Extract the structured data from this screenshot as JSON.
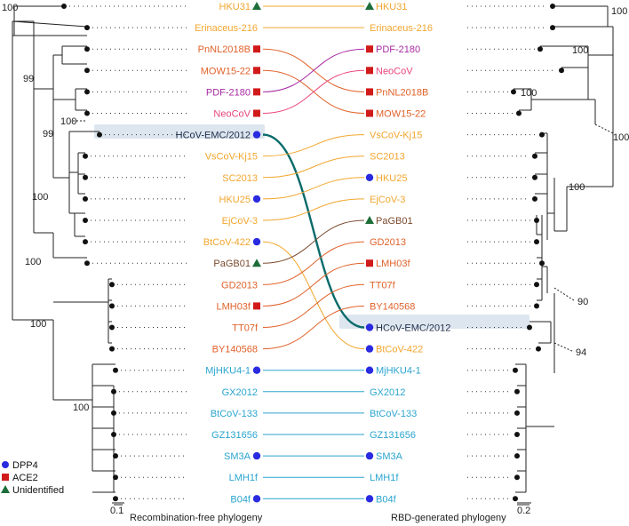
{
  "colors": {
    "brown": "#7a4a2e",
    "orange": "#f2a62e",
    "red": "#e0622a",
    "magenta": "#a82aa3",
    "pink": "#e8467a",
    "dark": "#1f2f4a",
    "teal": "#0a6b6b",
    "cyan": "#2aa5cf",
    "blue_marker": "#2a2ae0",
    "red_marker": "#d11a1a",
    "green_marker": "#1e6e3a",
    "highlight": "#dde6ef"
  },
  "legend": [
    {
      "shape": "circle",
      "label": "DPP4"
    },
    {
      "shape": "square",
      "label": "ACE2"
    },
    {
      "shape": "triangle",
      "label": "Unidentified"
    }
  ],
  "left_panel": {
    "caption": "Recombination-free phylogeny",
    "scale": "0.1",
    "taxa": [
      {
        "label": "HKU31",
        "color": "orange",
        "marker": "triangle"
      },
      {
        "label": "Erinaceus-216",
        "color": "orange",
        "marker": ""
      },
      {
        "label": "PnNL2018B",
        "color": "red",
        "marker": "square"
      },
      {
        "label": "MOW15-22",
        "color": "red",
        "marker": "square"
      },
      {
        "label": "PDF-2180",
        "color": "magenta",
        "marker": "square"
      },
      {
        "label": "NeoCoV",
        "color": "pink",
        "marker": "square"
      },
      {
        "label": "HCoV-EMC/2012",
        "color": "dark",
        "marker": "circle"
      },
      {
        "label": "VsCoV-Kj15",
        "color": "orange",
        "marker": ""
      },
      {
        "label": "SC2013",
        "color": "orange",
        "marker": ""
      },
      {
        "label": "HKU25",
        "color": "orange",
        "marker": "circle"
      },
      {
        "label": "EjCoV-3",
        "color": "orange",
        "marker": ""
      },
      {
        "label": "BtCoV-422",
        "color": "orange",
        "marker": "circle"
      },
      {
        "label": "PaGB01",
        "color": "brown",
        "marker": "triangle"
      },
      {
        "label": "GD2013",
        "color": "red",
        "marker": ""
      },
      {
        "label": "LMH03f",
        "color": "red",
        "marker": "square"
      },
      {
        "label": "TT07f",
        "color": "red",
        "marker": ""
      },
      {
        "label": "BY140568",
        "color": "red",
        "marker": ""
      },
      {
        "label": "MjHKU4-1",
        "color": "cyan",
        "marker": "circle"
      },
      {
        "label": "GX2012",
        "color": "cyan",
        "marker": ""
      },
      {
        "label": "BtCoV-133",
        "color": "cyan",
        "marker": ""
      },
      {
        "label": "GZ131656",
        "color": "cyan",
        "marker": ""
      },
      {
        "label": "SM3A",
        "color": "cyan",
        "marker": "circle"
      },
      {
        "label": "LMH1f",
        "color": "cyan",
        "marker": ""
      },
      {
        "label": "B04f",
        "color": "cyan",
        "marker": "circle"
      }
    ],
    "bootstrap": [
      "100",
      "99",
      "100",
      "99",
      "100",
      "100",
      "100",
      "100"
    ]
  },
  "right_panel": {
    "caption": "RBD-generated phylogeny",
    "scale": "0.2",
    "taxa": [
      {
        "label": "HKU31",
        "color": "orange",
        "marker": "triangle"
      },
      {
        "label": "Erinaceus-216",
        "color": "orange",
        "marker": ""
      },
      {
        "label": "PDF-2180",
        "color": "magenta",
        "marker": "square"
      },
      {
        "label": "NeoCoV",
        "color": "pink",
        "marker": "square"
      },
      {
        "label": "PnNL2018B",
        "color": "red",
        "marker": "square"
      },
      {
        "label": "MOW15-22",
        "color": "red",
        "marker": "square"
      },
      {
        "label": "VsCoV-Kj15",
        "color": "orange",
        "marker": ""
      },
      {
        "label": "SC2013",
        "color": "orange",
        "marker": ""
      },
      {
        "label": "HKU25",
        "color": "orange",
        "marker": "circle"
      },
      {
        "label": "EjCoV-3",
        "color": "orange",
        "marker": ""
      },
      {
        "label": "PaGB01",
        "color": "brown",
        "marker": "triangle"
      },
      {
        "label": "GD2013",
        "color": "red",
        "marker": ""
      },
      {
        "label": "LMH03f",
        "color": "red",
        "marker": "square"
      },
      {
        "label": "TT07f",
        "color": "red",
        "marker": ""
      },
      {
        "label": "BY140568",
        "color": "red",
        "marker": ""
      },
      {
        "label": "HCoV-EMC/2012",
        "color": "dark",
        "marker": "circle"
      },
      {
        "label": "BtCoV-422",
        "color": "orange",
        "marker": "circle"
      },
      {
        "label": "MjHKU4-1",
        "color": "cyan",
        "marker": "circle"
      },
      {
        "label": "GX2012",
        "color": "cyan",
        "marker": ""
      },
      {
        "label": "BtCoV-133",
        "color": "cyan",
        "marker": ""
      },
      {
        "label": "GZ131656",
        "color": "cyan",
        "marker": ""
      },
      {
        "label": "SM3A",
        "color": "cyan",
        "marker": "circle"
      },
      {
        "label": "LMH1f",
        "color": "cyan",
        "marker": ""
      },
      {
        "label": "B04f",
        "color": "cyan",
        "marker": "circle"
      }
    ],
    "bootstrap": [
      "100",
      "100",
      "100",
      "100",
      "100",
      "90",
      "94"
    ]
  },
  "links": [
    {
      "from": 0,
      "to": 0,
      "color": "orange"
    },
    {
      "from": 1,
      "to": 1,
      "color": "orange"
    },
    {
      "from": 2,
      "to": 4,
      "color": "red"
    },
    {
      "from": 3,
      "to": 5,
      "color": "red"
    },
    {
      "from": 4,
      "to": 2,
      "color": "magenta"
    },
    {
      "from": 5,
      "to": 3,
      "color": "pink"
    },
    {
      "from": 6,
      "to": 15,
      "color": "teal",
      "bold": true
    },
    {
      "from": 7,
      "to": 6,
      "color": "orange"
    },
    {
      "from": 8,
      "to": 7,
      "color": "orange"
    },
    {
      "from": 9,
      "to": 8,
      "color": "orange"
    },
    {
      "from": 10,
      "to": 9,
      "color": "orange"
    },
    {
      "from": 11,
      "to": 16,
      "color": "orange"
    },
    {
      "from": 12,
      "to": 10,
      "color": "brown"
    },
    {
      "from": 13,
      "to": 11,
      "color": "red"
    },
    {
      "from": 14,
      "to": 12,
      "color": "red"
    },
    {
      "from": 15,
      "to": 13,
      "color": "red"
    },
    {
      "from": 16,
      "to": 14,
      "color": "red"
    },
    {
      "from": 17,
      "to": 17,
      "color": "cyan"
    },
    {
      "from": 18,
      "to": 18,
      "color": "cyan"
    },
    {
      "from": 19,
      "to": 19,
      "color": "cyan"
    },
    {
      "from": 20,
      "to": 20,
      "color": "cyan"
    },
    {
      "from": 21,
      "to": 21,
      "color": "cyan"
    },
    {
      "from": 22,
      "to": 22,
      "color": "cyan"
    },
    {
      "from": 23,
      "to": 23,
      "color": "cyan"
    }
  ]
}
